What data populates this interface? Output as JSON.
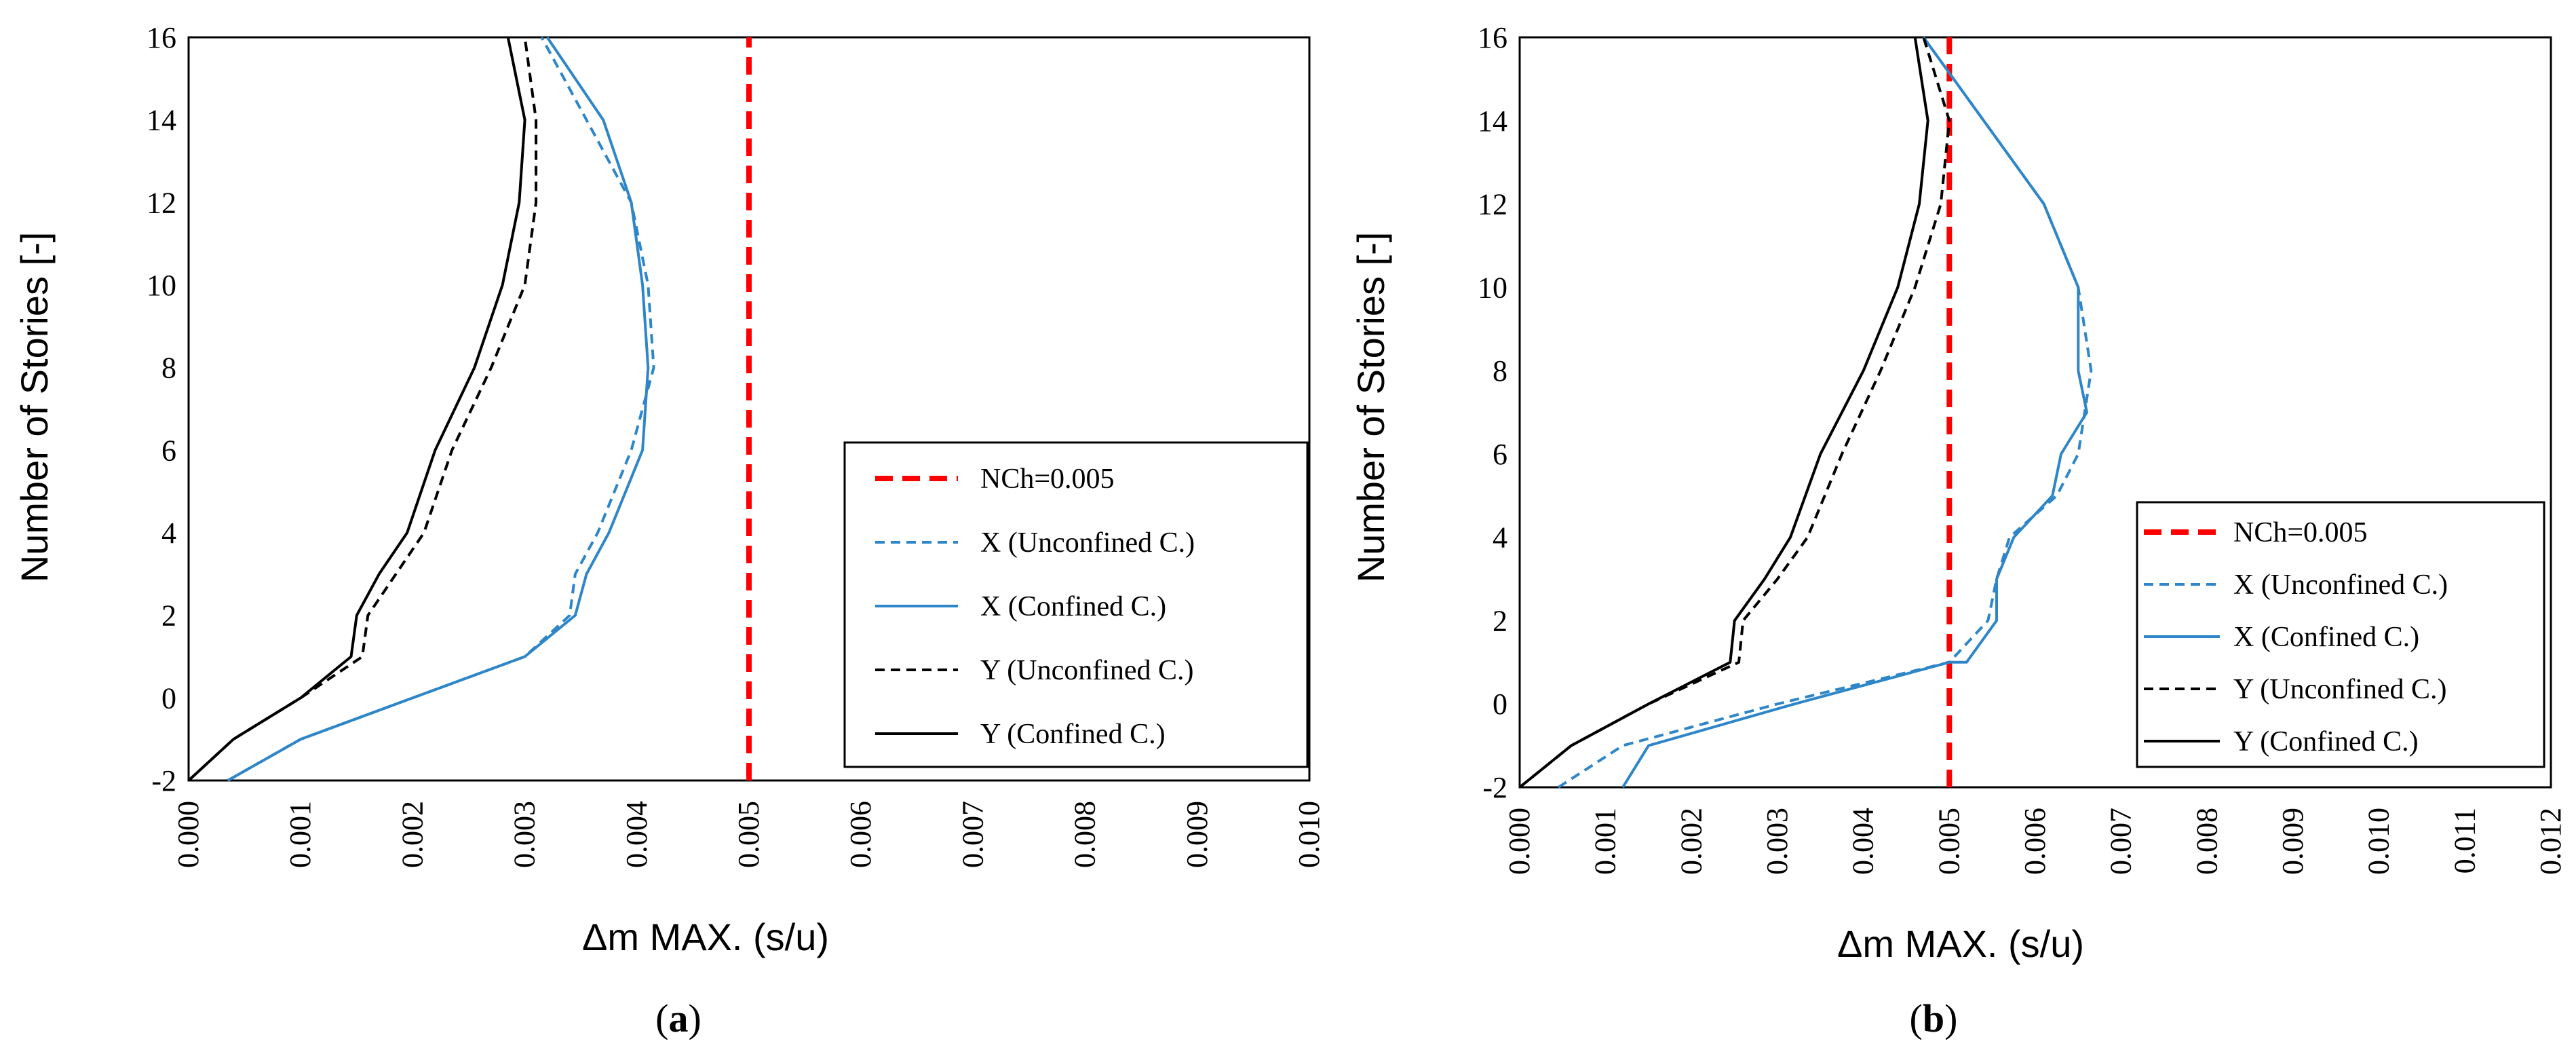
{
  "chart_data": [
    {
      "type": "line",
      "panel": "a",
      "caption_open": "(",
      "caption_letter": "a",
      "caption_close": ")",
      "xlabel": "Δm MAX.  (s/u)",
      "ylabel": "Number of Stories [-]",
      "xlim": [
        0,
        0.01
      ],
      "ylim": [
        -2,
        16
      ],
      "xticks": [
        "0.000",
        "0.001",
        "0.002",
        "0.003",
        "0.004",
        "0.005",
        "0.006",
        "0.007",
        "0.008",
        "0.009",
        "0.010"
      ],
      "yticks": [
        "-2",
        "0",
        "2",
        "4",
        "6",
        "8",
        "10",
        "12",
        "14",
        "16"
      ],
      "legend_position": "lower-right",
      "series": [
        {
          "name": "NCh=0.005",
          "color": "#ff0000",
          "style": "thickdash",
          "points": [
            [
              0.005,
              -2
            ],
            [
              0.005,
              16
            ]
          ]
        },
        {
          "name": "X (Unconfined C.)",
          "color": "#2e86c8",
          "style": "dashed",
          "points": [
            [
              0.00035,
              -2
            ],
            [
              0.001,
              -1
            ],
            [
              0.002,
              0
            ],
            [
              0.003,
              1
            ],
            [
              0.0034,
              2
            ],
            [
              0.00345,
              3
            ],
            [
              0.00365,
              4
            ],
            [
              0.00395,
              6
            ],
            [
              0.00415,
              8
            ],
            [
              0.0041,
              10
            ],
            [
              0.00395,
              12
            ],
            [
              0.00355,
              14
            ],
            [
              0.00315,
              16
            ]
          ]
        },
        {
          "name": "X (Confined C.)",
          "color": "#2e86c8",
          "style": "solid",
          "points": [
            [
              0.00035,
              -2
            ],
            [
              0.001,
              -1
            ],
            [
              0.002,
              0
            ],
            [
              0.003,
              1
            ],
            [
              0.00345,
              2
            ],
            [
              0.00355,
              3
            ],
            [
              0.00375,
              4
            ],
            [
              0.00405,
              6
            ],
            [
              0.0041,
              8
            ],
            [
              0.00405,
              10
            ],
            [
              0.00395,
              12
            ],
            [
              0.0037,
              14
            ],
            [
              0.0032,
              16
            ]
          ]
        },
        {
          "name": "Y (Unconfined C.)",
          "color": "#000000",
          "style": "dashed",
          "points": [
            [
              0.0,
              -2
            ],
            [
              0.0004,
              -1
            ],
            [
              0.001,
              0
            ],
            [
              0.00155,
              1
            ],
            [
              0.0016,
              2
            ],
            [
              0.00185,
              3
            ],
            [
              0.0021,
              4
            ],
            [
              0.00235,
              6
            ],
            [
              0.0027,
              8
            ],
            [
              0.003,
              10
            ],
            [
              0.0031,
              12
            ],
            [
              0.0031,
              14
            ],
            [
              0.003,
              16
            ]
          ]
        },
        {
          "name": "Y (Confined C.)",
          "color": "#000000",
          "style": "solid",
          "points": [
            [
              0.0,
              -2
            ],
            [
              0.0004,
              -1
            ],
            [
              0.001,
              0
            ],
            [
              0.00145,
              1
            ],
            [
              0.0015,
              2
            ],
            [
              0.0017,
              3
            ],
            [
              0.00195,
              4
            ],
            [
              0.0022,
              6
            ],
            [
              0.00255,
              8
            ],
            [
              0.0028,
              10
            ],
            [
              0.00295,
              12
            ],
            [
              0.003,
              14
            ],
            [
              0.00285,
              16
            ]
          ]
        }
      ]
    },
    {
      "type": "line",
      "panel": "b",
      "caption_open": "(",
      "caption_letter": "b",
      "caption_close": ")",
      "xlabel": "Δm MAX.  (s/u)",
      "ylabel": "Number of Stories [-]",
      "xlim": [
        0,
        0.012
      ],
      "ylim": [
        -2,
        16
      ],
      "xticks": [
        "0.000",
        "0.001",
        "0.002",
        "0.003",
        "0.004",
        "0.005",
        "0.006",
        "0.007",
        "0.008",
        "0.009",
        "0.010",
        "0.011",
        "0.012"
      ],
      "yticks": [
        "-2",
        "0",
        "2",
        "4",
        "6",
        "8",
        "10",
        "12",
        "14",
        "16"
      ],
      "legend_position": "lower-right",
      "series": [
        {
          "name": "NCh=0.005",
          "color": "#ff0000",
          "style": "thickdash",
          "points": [
            [
              0.005,
              -2
            ],
            [
              0.005,
              16
            ]
          ]
        },
        {
          "name": "X (Unconfined C.)",
          "color": "#2e86c8",
          "style": "dashed",
          "points": [
            [
              0.00045,
              -2
            ],
            [
              0.0012,
              -1
            ],
            [
              0.003,
              0
            ],
            [
              0.005,
              1
            ],
            [
              0.00545,
              2
            ],
            [
              0.00555,
              3
            ],
            [
              0.0057,
              4
            ],
            [
              0.00625,
              5
            ],
            [
              0.0065,
              6
            ],
            [
              0.00665,
              8
            ],
            [
              0.0065,
              10
            ],
            [
              0.0061,
              12
            ],
            [
              0.0054,
              14
            ],
            [
              0.0047,
              16
            ]
          ]
        },
        {
          "name": "X (Confined C.)",
          "color": "#2e86c8",
          "style": "solid",
          "points": [
            [
              0.0012,
              -2
            ],
            [
              0.0015,
              -1
            ],
            [
              0.0032,
              0
            ],
            [
              0.005,
              1
            ],
            [
              0.0052,
              1
            ],
            [
              0.00555,
              2
            ],
            [
              0.00555,
              3
            ],
            [
              0.00575,
              4
            ],
            [
              0.0062,
              5
            ],
            [
              0.0063,
              6
            ],
            [
              0.0066,
              7
            ],
            [
              0.0065,
              8
            ],
            [
              0.0065,
              10
            ],
            [
              0.0061,
              12
            ],
            [
              0.0054,
              14
            ],
            [
              0.0047,
              16
            ]
          ]
        },
        {
          "name": "Y (Unconfined C.)",
          "color": "#000000",
          "style": "dashed",
          "points": [
            [
              0.0,
              -2
            ],
            [
              0.0006,
              -1
            ],
            [
              0.0015,
              0
            ],
            [
              0.00255,
              1
            ],
            [
              0.0026,
              2
            ],
            [
              0.003,
              3
            ],
            [
              0.00335,
              4
            ],
            [
              0.00375,
              6
            ],
            [
              0.0042,
              8
            ],
            [
              0.0046,
              10
            ],
            [
              0.0049,
              12
            ],
            [
              0.005,
              14
            ],
            [
              0.0047,
              16
            ]
          ]
        },
        {
          "name": "Y (Confined C.)",
          "color": "#000000",
          "style": "solid",
          "points": [
            [
              0.0,
              -2
            ],
            [
              0.0006,
              -1
            ],
            [
              0.0015,
              0
            ],
            [
              0.00245,
              1
            ],
            [
              0.0025,
              2
            ],
            [
              0.00285,
              3
            ],
            [
              0.00315,
              4
            ],
            [
              0.0035,
              6
            ],
            [
              0.004,
              8
            ],
            [
              0.0044,
              10
            ],
            [
              0.00465,
              12
            ],
            [
              0.00475,
              14
            ],
            [
              0.0046,
              16
            ]
          ]
        }
      ]
    }
  ]
}
